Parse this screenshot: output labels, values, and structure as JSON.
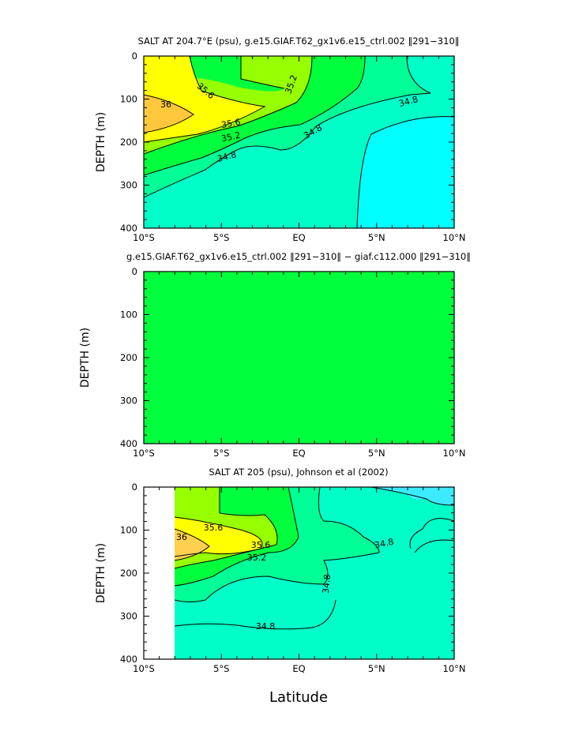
{
  "colors": {
    "yellow": "#ffff00",
    "orange": "#ffc83c",
    "light_orange": "#ffd050",
    "lime": "#96ff00",
    "green": "#00ff3c",
    "teal_green": "#00ff96",
    "aqua_green": "#00ffc8",
    "cyan": "#00ffff",
    "sky": "#3cebff",
    "diff_green": "#00ff3c",
    "line": "#000000"
  },
  "xlabel": "Latitude",
  "chart_data": [
    {
      "type": "heatmap",
      "title": "SALT AT 204.7°E (psu), g.e15.GIAF.T62_gx1v6.e15_ctrl.002 ‖291−310‖",
      "ylabel": "DEPTH (m)",
      "xlim": [
        -10,
        10
      ],
      "ylim": [
        400,
        0
      ],
      "x_ticks": [
        -10,
        -5,
        0,
        5,
        10
      ],
      "x_tick_labels": [
        "10°S",
        "5°S",
        "EQ",
        "5°N",
        "10°N"
      ],
      "y_ticks": [
        0,
        100,
        200,
        300,
        400
      ],
      "y_tick_labels": [
        "0",
        "100",
        "200",
        "300",
        "400"
      ],
      "contour_labels": [
        "35.6",
        "35.2",
        "36",
        "35.6",
        "35.2",
        "34.8",
        "34.8",
        "34.8"
      ]
    },
    {
      "type": "heatmap",
      "title": "g.e15.GIAF.T62_gx1v6.e15_ctrl.002 ‖291−310‖ − giaf.c112.000 ‖291−310‖",
      "ylabel": "DEPTH (m)",
      "xlim": [
        -10,
        10
      ],
      "ylim": [
        400,
        0
      ],
      "x_ticks": [
        -10,
        -5,
        0,
        5,
        10
      ],
      "x_tick_labels": [
        "10°S",
        "5°S",
        "EQ",
        "5°N",
        "10°N"
      ],
      "y_ticks": [
        0,
        100,
        200,
        300,
        400
      ],
      "y_tick_labels": [
        "0",
        "100",
        "200",
        "300",
        "400"
      ],
      "contour_labels": []
    },
    {
      "type": "heatmap",
      "title": "SALT AT 205 (psu), Johnson et al (2002)",
      "ylabel": "DEPTH (m)",
      "xlim": [
        -10,
        10
      ],
      "ylim": [
        400,
        0
      ],
      "x_ticks": [
        -10,
        -5,
        0,
        5,
        10
      ],
      "x_tick_labels": [
        "10°S",
        "5°S",
        "EQ",
        "5°N",
        "10°N"
      ],
      "y_ticks": [
        0,
        100,
        200,
        300,
        400
      ],
      "y_tick_labels": [
        "0",
        "100",
        "200",
        "300",
        "400"
      ],
      "contour_labels": [
        "36",
        "35.6",
        "35.6",
        "35.2",
        "34.8",
        "34.8",
        "34.8"
      ]
    }
  ]
}
